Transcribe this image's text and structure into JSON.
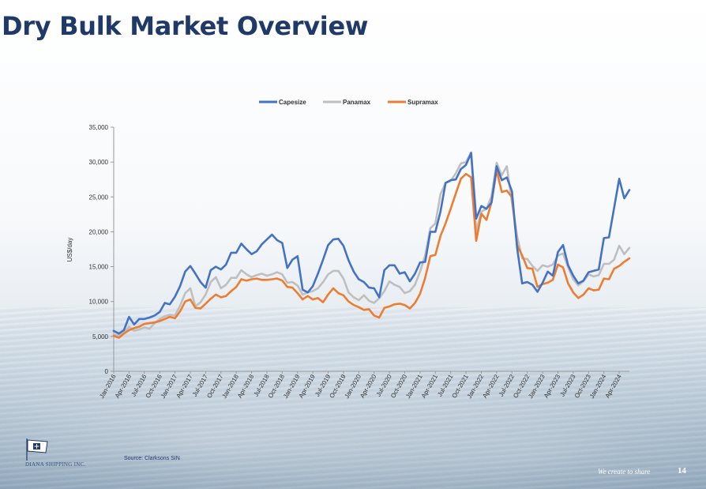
{
  "title": "Dry Bulk Market Overview",
  "source": "Source: Clarksons SIN",
  "company": "DIANA SHIPPING INC.",
  "tagline": "We create to share",
  "page_number": "14",
  "chart_data": {
    "type": "line",
    "ylabel": "US$/day",
    "xlabel": "",
    "ylim": [
      0,
      35000
    ],
    "yticks": [
      0,
      5000,
      10000,
      15000,
      20000,
      25000,
      30000,
      35000
    ],
    "ytick_labels": [
      "0",
      "5,000",
      "10,000",
      "15,000",
      "20,000",
      "25,000",
      "30,000",
      "35,000"
    ],
    "legend_position": "top-center",
    "x_tick_labels": [
      "Jan-2016",
      "Apr-2016",
      "Jul-2016",
      "Oct-2016",
      "Jan-2017",
      "Apr-2017",
      "Jul-2017",
      "Oct-2017",
      "Jan-2018",
      "Apr-2018",
      "Jul-2018",
      "Oct-2018",
      "Jan-2019",
      "Apr-2019",
      "Jul-2019",
      "Oct-2019",
      "Jan-2020",
      "Apr-2020",
      "Jul-2020",
      "Oct-2020",
      "Jan-2021",
      "Apr-2021",
      "Jul-2021",
      "Oct-2021",
      "Jan-2022",
      "Apr-2022",
      "Jul-2022",
      "Oct-2022",
      "Jan-2023",
      "Apr-2023",
      "Jul-2023",
      "Oct-2023",
      "Jan-2024",
      "Apr-2024"
    ],
    "series": [
      {
        "name": "Capesize",
        "color": "#4472c4",
        "values": [
          5800,
          5400,
          5900,
          7800,
          6700,
          7500,
          7500,
          7700,
          8000,
          8500,
          9800,
          9600,
          10700,
          12200,
          14300,
          15100,
          14000,
          12800,
          12000,
          14500,
          15000,
          14600,
          15300,
          17000,
          17000,
          18300,
          17500,
          16800,
          17200,
          18200,
          18900,
          19600,
          18800,
          18400,
          14800,
          16000,
          16500,
          11700,
          11300,
          12200,
          14000,
          16000,
          18100,
          18900,
          19000,
          18000,
          15900,
          14300,
          13200,
          12800,
          12000,
          11900,
          10600,
          14500,
          15200,
          15200,
          14000,
          14200,
          12900,
          14000,
          15600,
          15700,
          20000,
          20000,
          22900,
          27000,
          27400,
          27500,
          29000,
          29600,
          31300,
          21900,
          23700,
          23300,
          24200,
          29400,
          27400,
          27800,
          25800,
          17700,
          12600,
          12800,
          12400,
          11400,
          12700,
          14300,
          13700,
          17100,
          18100,
          15200,
          13700,
          12600,
          13000,
          14200,
          14400,
          14600,
          19100,
          19200,
          23400,
          27600,
          24800,
          26000
        ]
      },
      {
        "name": "Panamax",
        "color": "#bfbfbf",
        "values": [
          5300,
          5100,
          5500,
          6400,
          5800,
          6000,
          6300,
          6100,
          6900,
          7500,
          7900,
          8100,
          8000,
          9400,
          11200,
          11900,
          9300,
          9900,
          11000,
          12800,
          13500,
          11900,
          12400,
          13400,
          13400,
          14500,
          13900,
          13500,
          13800,
          14000,
          13700,
          13900,
          14200,
          13900,
          12700,
          12800,
          12300,
          11000,
          11300,
          11500,
          11900,
          12800,
          13900,
          14400,
          14400,
          13300,
          11300,
          10600,
          10200,
          10900,
          10100,
          9800,
          10500,
          11500,
          12900,
          12400,
          12100,
          11200,
          11500,
          12400,
          14300,
          16600,
          20500,
          21200,
          25400,
          27000,
          27300,
          28400,
          29800,
          30000,
          31400,
          20100,
          22900,
          23300,
          25100,
          29900,
          28100,
          29400,
          24200,
          19400,
          16200,
          16100,
          15100,
          14400,
          15200,
          15000,
          15300,
          16600,
          16900,
          14900,
          13200,
          12300,
          12900,
          13900,
          13600,
          13800,
          15400,
          15400,
          16000,
          18000,
          16800,
          17700
        ]
      },
      {
        "name": "Supramax",
        "color": "#ed7d31",
        "values": [
          5100,
          4800,
          5400,
          5900,
          6200,
          6400,
          6800,
          6900,
          7000,
          7200,
          7500,
          7800,
          7600,
          8600,
          10000,
          10300,
          9100,
          9000,
          9700,
          10400,
          11000,
          10600,
          10800,
          11500,
          12100,
          13200,
          13000,
          13200,
          13300,
          13100,
          13100,
          13200,
          13300,
          13000,
          12100,
          12000,
          11200,
          10300,
          10800,
          10300,
          10500,
          9900,
          11000,
          11900,
          11200,
          10900,
          10000,
          9500,
          9200,
          8800,
          8900,
          8000,
          7700,
          9100,
          9300,
          9600,
          9700,
          9500,
          9000,
          9800,
          11100,
          13400,
          16500,
          16700,
          19400,
          21200,
          23300,
          25500,
          27600,
          28300,
          27800,
          18700,
          22600,
          21700,
          24200,
          28800,
          25700,
          25900,
          25000,
          18100,
          16600,
          14800,
          14700,
          12100,
          12500,
          12700,
          13100,
          15300,
          14900,
          12600,
          11300,
          10500,
          11000,
          11900,
          11600,
          11700,
          13300,
          13200,
          14700,
          15100,
          15700,
          16200
        ]
      }
    ]
  }
}
